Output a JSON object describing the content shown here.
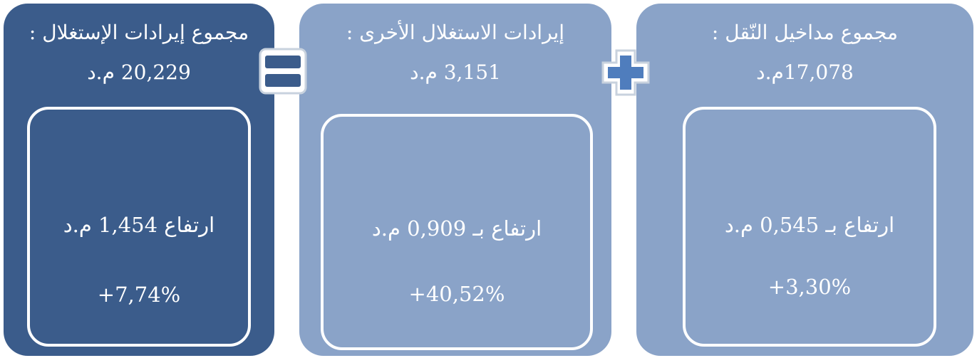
{
  "cards": [
    {
      "title": "مجموع إيرادات الإستغلال :",
      "amount": "20,229 م.د",
      "change": "ارتفاع 1,454 م.د",
      "percent": "+7,74%"
    },
    {
      "title": "إيرادات الاستغلال الأخرى :",
      "amount": "3,151 م.د",
      "change": "ارتفاع بـ  0,909 م.د",
      "percent": "+40,52%"
    },
    {
      "title": "مجموع مداخيل النّقل :",
      "amount": "17,078م.د",
      "change": "ارتفاع بـ 0,545 م.د",
      "percent": "+3,30%"
    }
  ]
}
